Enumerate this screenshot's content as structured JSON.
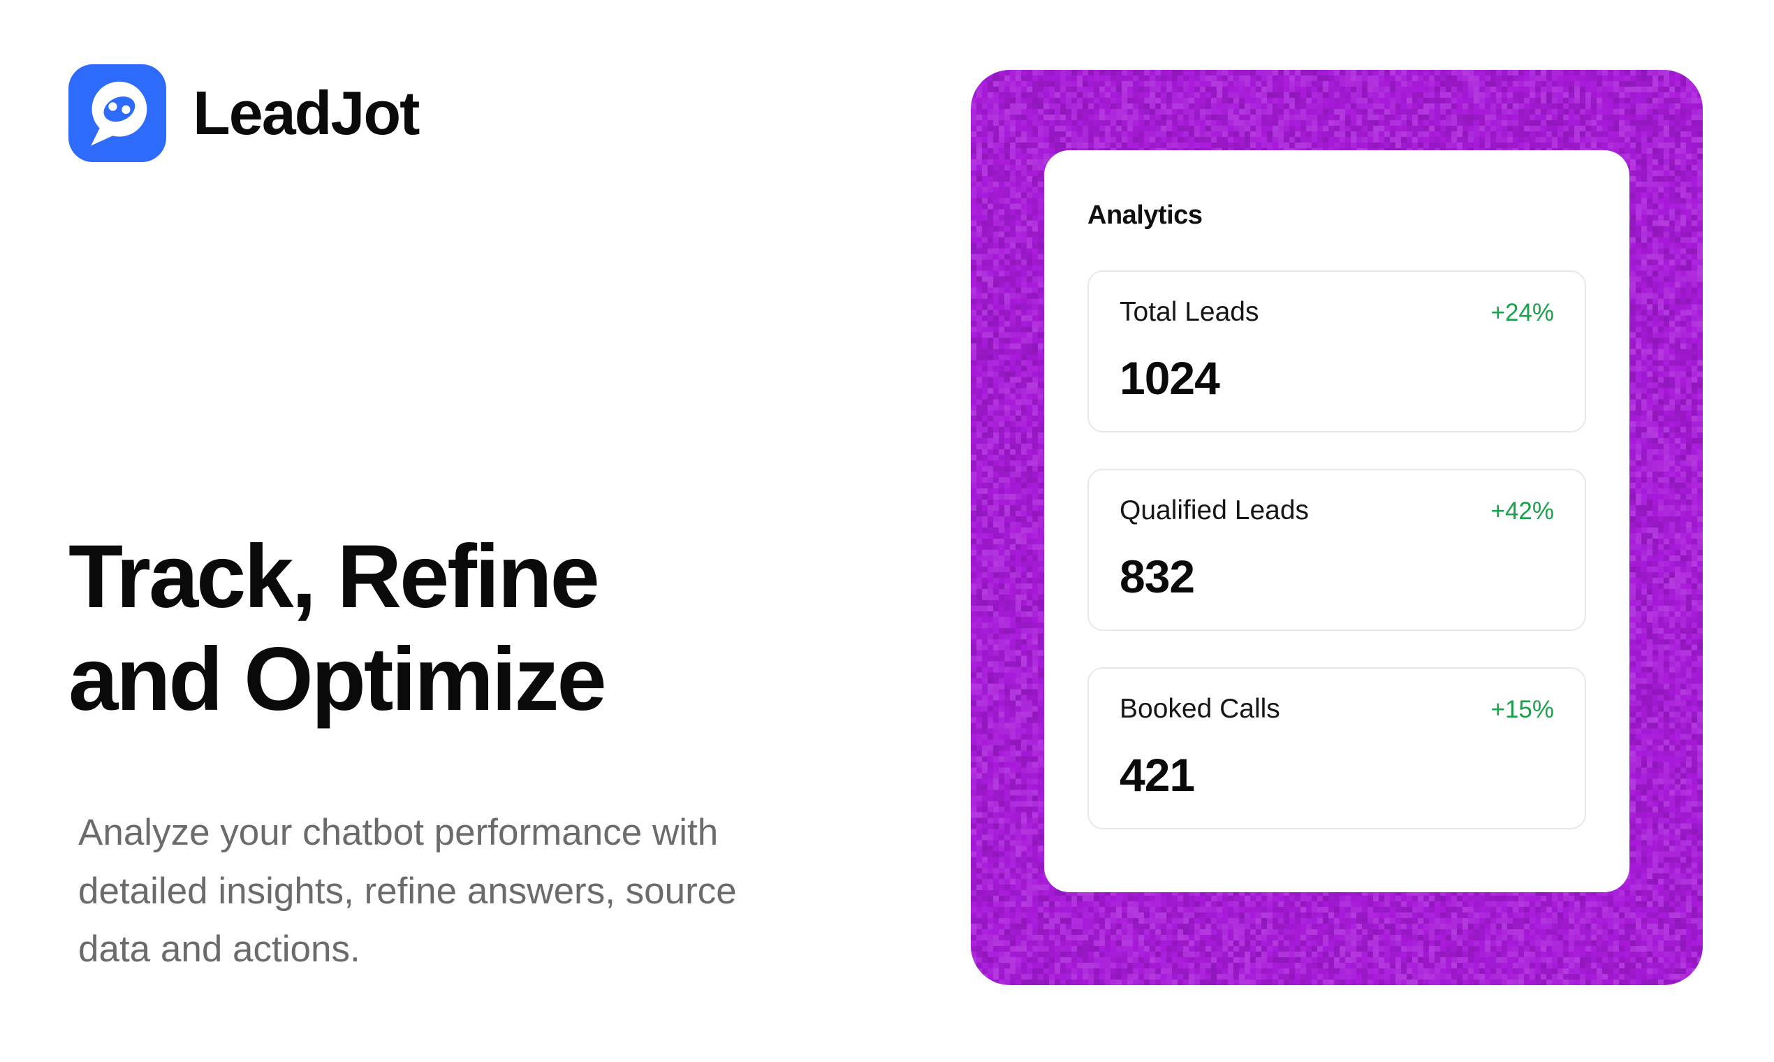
{
  "brand": {
    "name": "LeadJot",
    "logo_icon": "leadjot-chat-bubble-face-icon"
  },
  "headline": {
    "line1": "Track, Refine",
    "line2": "and Optimize"
  },
  "subtext": {
    "lines": [
      "Analyze your chatbot performance with",
      "detailed insights, refine answers, source",
      "data and actions."
    ]
  },
  "analytics": {
    "title": "Analytics",
    "stats": [
      {
        "label": "Total Leads",
        "delta": "+24%",
        "value": "1024"
      },
      {
        "label": "Qualified Leads",
        "delta": "+42%",
        "value": "832"
      },
      {
        "label": "Booked Calls",
        "delta": "+15%",
        "value": "421"
      }
    ]
  },
  "colors": {
    "accent_purple": "#A81BDA",
    "delta_green": "#17A34A",
    "logo_blue": "#2E6BFB"
  }
}
